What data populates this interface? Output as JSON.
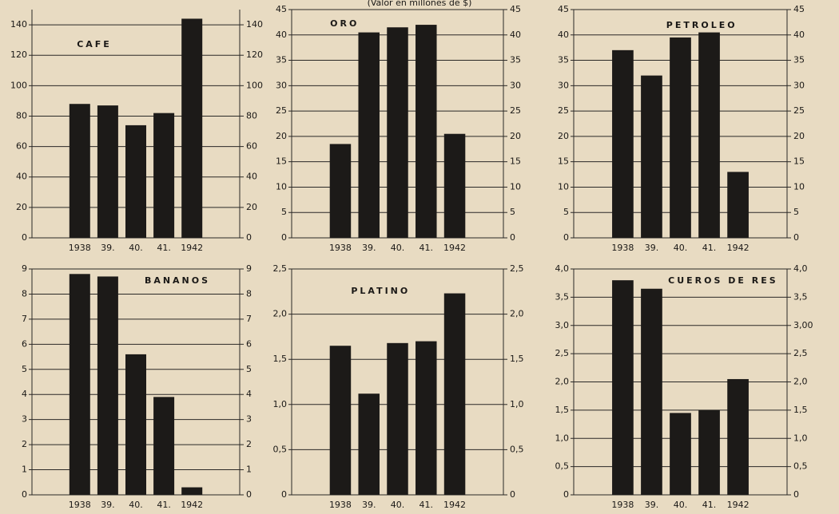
{
  "header": {
    "subtitle": "(Valor en millones de $)"
  },
  "chart_data": [
    {
      "type": "bar",
      "title": "CAFE",
      "categories": [
        "1938",
        "39.",
        "40.",
        "41.",
        "1942"
      ],
      "values": [
        88,
        87,
        74,
        82,
        144
      ],
      "color": "#1c1a18",
      "ylim": [
        0,
        150
      ],
      "yticks": [
        0,
        20,
        40,
        60,
        80,
        100,
        120,
        140
      ],
      "y2lim": [
        0,
        150
      ],
      "y2ticks": [
        0,
        20,
        40,
        60,
        80,
        100,
        120,
        140
      ],
      "grid": true
    },
    {
      "type": "bar",
      "title": "ORO",
      "categories": [
        "1938",
        "39.",
        "40.",
        "41.",
        "1942"
      ],
      "values": [
        18.5,
        40.5,
        41.5,
        42,
        20.5
      ],
      "color": "#1c1a18",
      "ylim": [
        0,
        45
      ],
      "yticks": [
        0,
        5,
        10,
        15,
        20,
        25,
        30,
        35,
        40,
        45
      ],
      "y2lim": [
        0,
        45
      ],
      "y2ticks": [
        0,
        5,
        10,
        15,
        20,
        25,
        30,
        35,
        40,
        45
      ],
      "grid": true
    },
    {
      "type": "bar",
      "title": "PETROLEO",
      "categories": [
        "1938",
        "39.",
        "40.",
        "41.",
        "1942"
      ],
      "values": [
        37,
        32,
        39.5,
        40.5,
        13
      ],
      "color": "#1c1a18",
      "ylim": [
        0,
        45
      ],
      "yticks": [
        0,
        5,
        10,
        15,
        20,
        25,
        30,
        35,
        40,
        45
      ],
      "y2lim": [
        0,
        45
      ],
      "y2ticks": [
        0,
        5,
        10,
        15,
        20,
        25,
        30,
        35,
        40,
        45
      ],
      "grid": true
    },
    {
      "type": "bar",
      "title": "BANANOS",
      "categories": [
        "1938",
        "39.",
        "40.",
        "41.",
        "1942"
      ],
      "values": [
        8.8,
        8.7,
        5.6,
        3.9,
        0.3
      ],
      "color": "#1c1a18",
      "ylim": [
        0,
        9
      ],
      "yticks": [
        0,
        1,
        2,
        3,
        4,
        5,
        6,
        7,
        8,
        9
      ],
      "y2lim": [
        0,
        9
      ],
      "y2ticks": [
        0,
        1,
        2,
        3,
        4,
        5,
        6,
        7,
        8,
        9
      ],
      "grid": true
    },
    {
      "type": "bar",
      "title": "PLATINO",
      "categories": [
        "1938",
        "39.",
        "40.",
        "41.",
        "1942"
      ],
      "values": [
        1.65,
        1.12,
        1.68,
        1.7,
        2.23
      ],
      "color": "#1c1a18",
      "ylim": [
        0,
        2.5
      ],
      "yticks": [
        0,
        {
          "value": 0.5,
          "label": "0,5"
        },
        {
          "value": 1,
          "label": "1,0"
        },
        {
          "value": 1.5,
          "label": "1,5"
        },
        {
          "value": 2,
          "label": "2,0"
        },
        {
          "value": 2.5,
          "label": "2,5"
        }
      ],
      "y2lim": [
        0,
        2.5
      ],
      "y2ticks": [
        0,
        {
          "value": 0.5,
          "label": "0,5"
        },
        {
          "value": 1,
          "label": "1,0"
        },
        {
          "value": 1.5,
          "label": "1,5"
        },
        {
          "value": 2,
          "label": "2,0"
        },
        {
          "value": 2.5,
          "label": "2,5"
        }
      ],
      "grid": true
    },
    {
      "type": "bar",
      "title": "CUEROS DE RES",
      "categories": [
        "1938",
        "39.",
        "40.",
        "41.",
        "1942"
      ],
      "values": [
        3.8,
        3.65,
        1.45,
        1.5,
        2.05
      ],
      "color": "#1c1a18",
      "ylim": [
        0,
        4
      ],
      "yticks": [
        0,
        {
          "value": 0.5,
          "label": "0,5"
        },
        {
          "value": 1,
          "label": "1,0"
        },
        {
          "value": 1.5,
          "label": "1,5"
        },
        {
          "value": 2,
          "label": "2,0"
        },
        {
          "value": 2.5,
          "label": "2,5"
        },
        {
          "value": 3,
          "label": "3,0"
        },
        {
          "value": 3.5,
          "label": "3,5"
        },
        {
          "value": 4,
          "label": "4,0"
        }
      ],
      "y2lim": [
        0,
        4
      ],
      "y2ticks": [
        0,
        {
          "value": 0.5,
          "label": "0,5"
        },
        {
          "value": 1,
          "label": "1,0"
        },
        {
          "value": 1.5,
          "label": "1,5"
        },
        {
          "value": 2,
          "label": "2,0"
        },
        {
          "value": 2.5,
          "label": "2,5"
        },
        {
          "value": 3,
          "label": "3,00"
        },
        {
          "value": 3.5,
          "label": "3,5"
        },
        {
          "value": 4,
          "label": "4,0"
        }
      ],
      "grid": true
    }
  ]
}
